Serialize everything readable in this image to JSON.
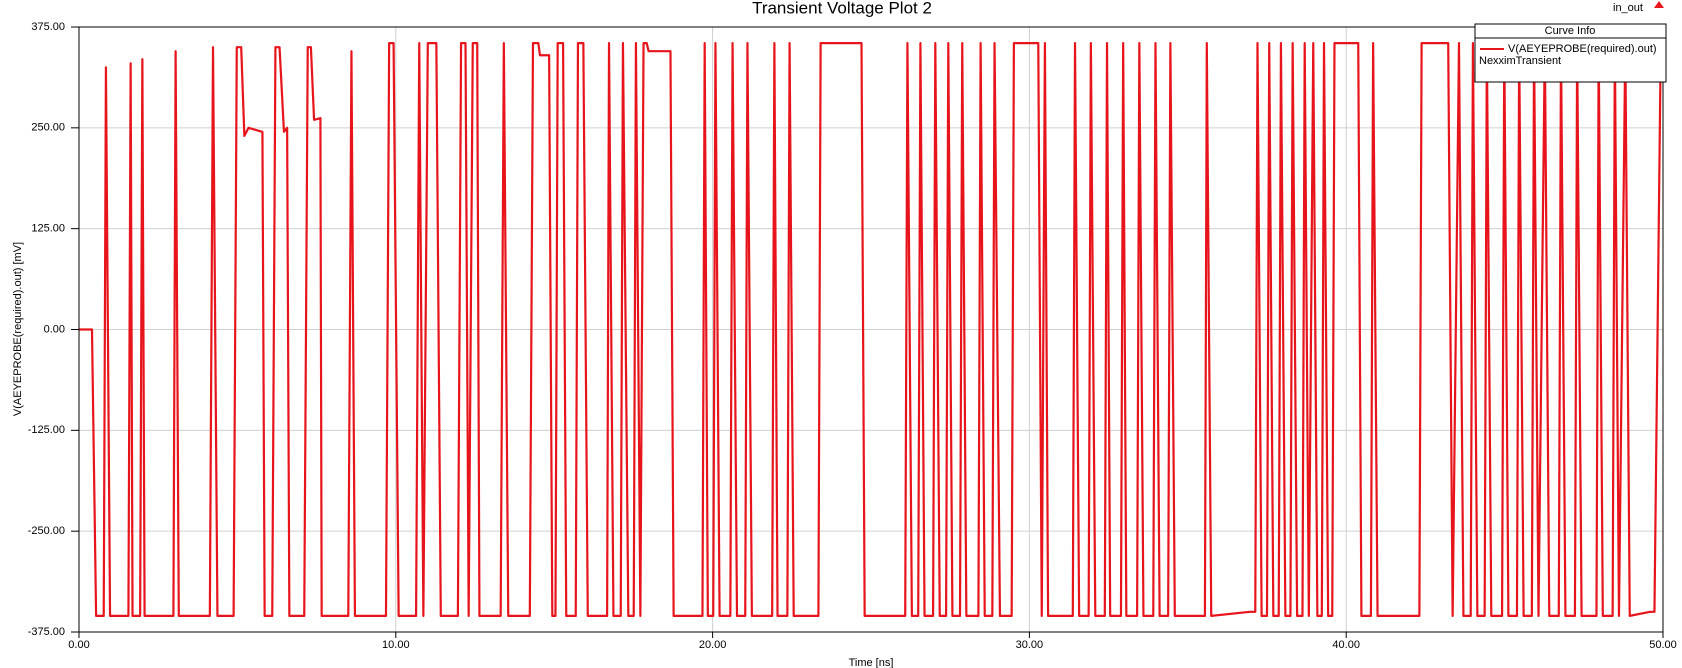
{
  "chart_data": {
    "type": "line",
    "title": "Transient Voltage Plot 2",
    "design": "in_out",
    "x_label": "Time [ns]",
    "y_label": "V(AEYEPROBE(required).out) [mV]",
    "legend_title": "Curve Info",
    "solution": "NexximTransient",
    "grid": true,
    "xlim": [
      0,
      50
    ],
    "ylim": [
      -375,
      375
    ],
    "xticks": [
      {
        "value": 0,
        "label": "0.00"
      },
      {
        "value": 10,
        "label": "10.00"
      },
      {
        "value": 20,
        "label": "20.00"
      },
      {
        "value": 30,
        "label": "30.00"
      },
      {
        "value": 40,
        "label": "40.00"
      },
      {
        "value": 50,
        "label": "50.00"
      }
    ],
    "yticks": [
      {
        "value": -375,
        "label": "-375.00"
      },
      {
        "value": -250,
        "label": "-250.00"
      },
      {
        "value": -125,
        "label": "-125.00"
      },
      {
        "value": 0,
        "label": "0.00"
      },
      {
        "value": 125,
        "label": "125.00"
      },
      {
        "value": 250,
        "label": "250.00"
      },
      {
        "value": 375,
        "label": "375.00"
      }
    ],
    "x": [
      0,
      0.41,
      0.54,
      0.78,
      0.85,
      0.98,
      1.56,
      1.63,
      1.69,
      1.93,
      2.0,
      2.07,
      2.98,
      3.05,
      3.15,
      4.13,
      4.23,
      4.37,
      4.88,
      4.98,
      5.12,
      5.22,
      5.35,
      5.79,
      5.86,
      6.1,
      6.2,
      6.33,
      6.47,
      6.57,
      6.64,
      7.11,
      7.22,
      7.32,
      7.42,
      7.62,
      7.66,
      8.5,
      8.6,
      8.71,
      9.69,
      9.79,
      9.93,
      10.09,
      10.64,
      10.74,
      10.87,
      11.01,
      11.28,
      11.42,
      11.96,
      12.06,
      12.2,
      12.3,
      12.43,
      12.57,
      12.64,
      13.31,
      13.41,
      13.55,
      14.23,
      14.33,
      14.5,
      14.55,
      14.84,
      14.94,
      15.04,
      15.11,
      15.28,
      15.38,
      15.68,
      15.75,
      15.92,
      16.06,
      16.67,
      16.73,
      16.87,
      17.1,
      17.17,
      17.34,
      17.51,
      17.58,
      17.72,
      17.82,
      17.92,
      17.98,
      18.67,
      18.77,
      19.68,
      19.75,
      19.85,
      20.02,
      20.09,
      20.22,
      20.56,
      20.63,
      20.77,
      21.03,
      21.1,
      21.24,
      21.88,
      21.95,
      22.05,
      22.36,
      22.43,
      22.56,
      23.34,
      23.41,
      24.7,
      24.8,
      26.08,
      26.15,
      26.29,
      26.49,
      26.56,
      26.69,
      26.96,
      27.03,
      27.17,
      27.37,
      27.44,
      27.57,
      27.81,
      27.88,
      28.01,
      28.39,
      28.46,
      28.59,
      28.83,
      28.9,
      29.07,
      29.44,
      29.51,
      30.28,
      30.39,
      30.49,
      30.59,
      31.37,
      31.44,
      31.57,
      31.87,
      31.94,
      32.08,
      32.38,
      32.45,
      32.55,
      32.89,
      32.96,
      33.06,
      33.4,
      33.47,
      33.6,
      33.91,
      33.98,
      34.11,
      34.38,
      34.45,
      34.59,
      35.54,
      35.6,
      35.74,
      36.96,
      37.13,
      37.2,
      37.33,
      37.5,
      37.57,
      37.7,
      37.87,
      37.94,
      38.08,
      38.24,
      38.31,
      38.45,
      38.62,
      38.69,
      38.82,
      38.96,
      39.09,
      39.23,
      39.3,
      39.43,
      39.56,
      39.63,
      40.38,
      40.48,
      40.78,
      40.85,
      40.99,
      42.31,
      42.38,
      43.22,
      43.36,
      43.56,
      43.7,
      43.93,
      44.0,
      44.14,
      44.37,
      44.44,
      44.58,
      44.92,
      44.99,
      45.12,
      45.39,
      45.46,
      45.6,
      45.86,
      45.93,
      46.07,
      46.27,
      46.41,
      46.71,
      46.78,
      46.92,
      47.22,
      47.29,
      47.43,
      47.9,
      47.97,
      48.1,
      48.41,
      48.48,
      48.61,
      48.81,
      48.95,
      49.59,
      49.73,
      49.93,
      50
    ],
    "series": [
      {
        "name": "V(AEYEPROBE(required).out)",
        "color": "#e8141c",
        "values": [
          0,
          0,
          -355,
          -355,
          325,
          -355,
          -355,
          330,
          -355,
          -355,
          335,
          -355,
          -355,
          345,
          -355,
          -355,
          350,
          -355,
          -355,
          350,
          350,
          240,
          250,
          245,
          -355,
          -355,
          350,
          350,
          245,
          250,
          -355,
          -355,
          350,
          350,
          260,
          262,
          -355,
          -355,
          345,
          -355,
          -355,
          355,
          355,
          -355,
          -355,
          355,
          -355,
          355,
          355,
          -355,
          -355,
          355,
          355,
          -355,
          355,
          355,
          -355,
          -355,
          355,
          -355,
          -355,
          355,
          355,
          340,
          340,
          -355,
          -355,
          355,
          355,
          -355,
          -355,
          355,
          355,
          -355,
          -355,
          355,
          -355,
          -355,
          355,
          -355,
          -355,
          355,
          -355,
          355,
          355,
          345,
          345,
          -355,
          -355,
          355,
          -355,
          -355,
          355,
          -355,
          -355,
          355,
          -355,
          -355,
          355,
          -355,
          -355,
          355,
          -355,
          -355,
          355,
          -355,
          -355,
          355,
          355,
          -355,
          -355,
          355,
          -355,
          -355,
          355,
          -355,
          -355,
          355,
          -355,
          -355,
          355,
          -355,
          -355,
          355,
          -355,
          -355,
          355,
          -355,
          -355,
          355,
          -355,
          -355,
          355,
          355,
          -355,
          355,
          -355,
          -355,
          355,
          -355,
          -355,
          355,
          -355,
          -355,
          355,
          -355,
          -355,
          355,
          -355,
          -355,
          355,
          -355,
          -355,
          355,
          -355,
          -355,
          355,
          -355,
          -355,
          355,
          -355,
          -350,
          -350,
          355,
          -355,
          -355,
          355,
          -355,
          -355,
          355,
          -355,
          -355,
          355,
          -355,
          -355,
          355,
          -355,
          355,
          -355,
          -355,
          355,
          -355,
          -355,
          355,
          355,
          -355,
          -355,
          355,
          -355,
          -355,
          355,
          355,
          -355,
          355,
          -355,
          -355,
          355,
          -355,
          -355,
          355,
          -355,
          -355,
          355,
          -355,
          -355,
          355,
          -355,
          -355,
          355,
          -355,
          355,
          -355,
          -355,
          355,
          -355,
          -355,
          355,
          -355,
          -355,
          355,
          -355,
          -355,
          355,
          -355,
          355,
          -355,
          -350,
          -350,
          355,
          355
        ]
      }
    ]
  }
}
